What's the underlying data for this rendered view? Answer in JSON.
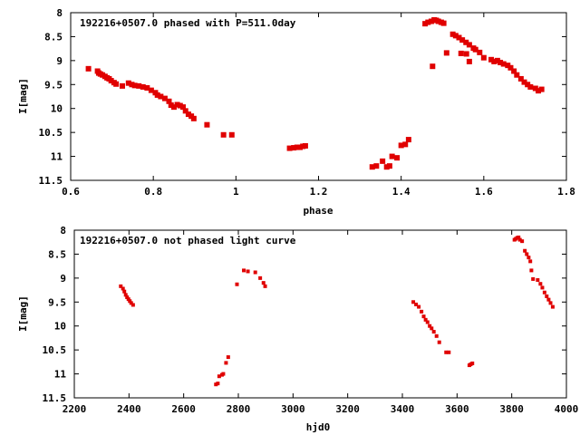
{
  "colors": {
    "points": "#e00000",
    "axis": "#000000",
    "background": "#ffffff"
  },
  "chart_data": [
    {
      "type": "scatter",
      "title": "192216+0507.0 phased with P=511.0day",
      "xlabel": "phase",
      "ylabel": "I[mag]",
      "xlim": [
        0.6,
        1.8
      ],
      "ylim": [
        8,
        11.5
      ],
      "y_inverted": true,
      "x_ticks": [
        "0.6",
        "0.8",
        "1",
        "1.2",
        "1.4",
        "1.6",
        "1.8"
      ],
      "y_ticks": [
        "8",
        "8.5",
        "9",
        "9.5",
        "10",
        "10.5",
        "11",
        "11.5"
      ],
      "series": [
        {
          "points": [
            [
              0.643,
              9.17
            ],
            [
              0.665,
              9.22
            ],
            [
              0.668,
              9.26
            ],
            [
              0.672,
              9.28
            ],
            [
              0.677,
              9.3
            ],
            [
              0.683,
              9.33
            ],
            [
              0.688,
              9.36
            ],
            [
              0.693,
              9.38
            ],
            [
              0.698,
              9.42
            ],
            [
              0.705,
              9.46
            ],
            [
              0.71,
              9.49
            ],
            [
              0.725,
              9.53
            ],
            [
              0.74,
              9.47
            ],
            [
              0.748,
              9.5
            ],
            [
              0.755,
              9.52
            ],
            [
              0.765,
              9.53
            ],
            [
              0.775,
              9.55
            ],
            [
              0.785,
              9.57
            ],
            [
              0.795,
              9.62
            ],
            [
              0.805,
              9.67
            ],
            [
              0.81,
              9.72
            ],
            [
              0.818,
              9.75
            ],
            [
              0.828,
              9.79
            ],
            [
              0.838,
              9.85
            ],
            [
              0.843,
              9.93
            ],
            [
              0.85,
              9.97
            ],
            [
              0.858,
              9.92
            ],
            [
              0.865,
              9.94
            ],
            [
              0.872,
              9.97
            ],
            [
              0.878,
              10.05
            ],
            [
              0.885,
              10.12
            ],
            [
              0.892,
              10.16
            ],
            [
              0.898,
              10.21
            ],
            [
              0.93,
              10.34
            ],
            [
              0.97,
              10.55
            ],
            [
              0.99,
              10.55
            ],
            [
              1.13,
              10.83
            ],
            [
              1.14,
              10.82
            ],
            [
              1.148,
              10.81
            ],
            [
              1.155,
              10.81
            ],
            [
              1.162,
              10.79
            ],
            [
              1.168,
              10.78
            ],
            [
              1.33,
              11.22
            ],
            [
              1.34,
              11.2
            ],
            [
              1.355,
              11.1
            ],
            [
              1.365,
              11.22
            ],
            [
              1.372,
              11.2
            ],
            [
              1.378,
              11.0
            ],
            [
              1.39,
              11.03
            ],
            [
              1.4,
              10.77
            ],
            [
              1.41,
              10.75
            ],
            [
              1.418,
              10.65
            ],
            [
              1.458,
              8.23
            ],
            [
              1.465,
              8.2
            ],
            [
              1.473,
              8.18
            ],
            [
              1.48,
              8.15
            ],
            [
              1.485,
              8.16
            ],
            [
              1.49,
              8.18
            ],
            [
              1.497,
              8.2
            ],
            [
              1.503,
              8.22
            ],
            [
              1.476,
              9.12
            ],
            [
              1.51,
              8.84
            ],
            [
              1.525,
              8.45
            ],
            [
              1.532,
              8.48
            ],
            [
              1.54,
              8.52
            ],
            [
              1.548,
              8.57
            ],
            [
              1.557,
              8.62
            ],
            [
              1.565,
              8.67
            ],
            [
              1.545,
              8.85
            ],
            [
              1.558,
              8.86
            ],
            [
              1.565,
              9.02
            ],
            [
              1.575,
              8.74
            ],
            [
              1.58,
              8.77
            ],
            [
              1.59,
              8.83
            ],
            [
              1.6,
              8.94
            ],
            [
              1.618,
              8.98
            ],
            [
              1.625,
              9.02
            ],
            [
              1.633,
              9.0
            ],
            [
              1.64,
              9.04
            ],
            [
              1.648,
              9.07
            ],
            [
              1.658,
              9.1
            ],
            [
              1.665,
              9.15
            ],
            [
              1.673,
              9.22
            ],
            [
              1.68,
              9.3
            ],
            [
              1.69,
              9.38
            ],
            [
              1.698,
              9.45
            ],
            [
              1.706,
              9.5
            ],
            [
              1.713,
              9.55
            ],
            [
              1.725,
              9.58
            ],
            [
              1.732,
              9.63
            ],
            [
              1.74,
              9.6
            ]
          ]
        }
      ]
    },
    {
      "type": "scatter",
      "title": "192216+0507.0 not phased light curve",
      "xlabel": "hjd0",
      "ylabel": "I[mag]",
      "xlim": [
        2200,
        4000
      ],
      "ylim": [
        8,
        11.5
      ],
      "y_inverted": true,
      "x_ticks": [
        "2200",
        "2400",
        "2600",
        "2800",
        "3000",
        "3200",
        "3400",
        "3600",
        "3800",
        "4000"
      ],
      "y_ticks": [
        "8",
        "8.5",
        "9",
        "9.5",
        "10",
        "10.5",
        "11",
        "11.5"
      ],
      "series": [
        {
          "points": [
            [
              2370,
              9.17
            ],
            [
              2378,
              9.22
            ],
            [
              2383,
              9.28
            ],
            [
              2388,
              9.35
            ],
            [
              2393,
              9.4
            ],
            [
              2398,
              9.44
            ],
            [
              2403,
              9.48
            ],
            [
              2408,
              9.52
            ],
            [
              2415,
              9.56
            ],
            [
              2718,
              11.22
            ],
            [
              2725,
              11.2
            ],
            [
              2730,
              11.05
            ],
            [
              2740,
              11.02
            ],
            [
              2745,
              11.0
            ],
            [
              2755,
              10.77
            ],
            [
              2763,
              10.65
            ],
            [
              2795,
              9.13
            ],
            [
              2820,
              8.84
            ],
            [
              2835,
              8.86
            ],
            [
              2862,
              8.88
            ],
            [
              2880,
              9.0
            ],
            [
              2892,
              9.1
            ],
            [
              2898,
              9.17
            ],
            [
              3440,
              9.5
            ],
            [
              3450,
              9.55
            ],
            [
              3460,
              9.6
            ],
            [
              3470,
              9.7
            ],
            [
              3478,
              9.8
            ],
            [
              3485,
              9.87
            ],
            [
              3492,
              9.92
            ],
            [
              3500,
              10.0
            ],
            [
              3507,
              10.05
            ],
            [
              3515,
              10.12
            ],
            [
              3525,
              10.21
            ],
            [
              3535,
              10.34
            ],
            [
              3560,
              10.55
            ],
            [
              3570,
              10.55
            ],
            [
              3645,
              10.82
            ],
            [
              3650,
              10.8
            ],
            [
              3656,
              10.78
            ],
            [
              3810,
              8.2
            ],
            [
              3815,
              8.18
            ],
            [
              3820,
              8.16
            ],
            [
              3825,
              8.15
            ],
            [
              3830,
              8.2
            ],
            [
              3838,
              8.23
            ],
            [
              3848,
              8.43
            ],
            [
              3855,
              8.5
            ],
            [
              3862,
              8.57
            ],
            [
              3868,
              8.65
            ],
            [
              3872,
              8.84
            ],
            [
              3878,
              9.02
            ],
            [
              3895,
              9.04
            ],
            [
              3905,
              9.12
            ],
            [
              3912,
              9.2
            ],
            [
              3920,
              9.3
            ],
            [
              3928,
              9.38
            ],
            [
              3935,
              9.45
            ],
            [
              3942,
              9.52
            ],
            [
              3950,
              9.6
            ]
          ]
        }
      ]
    }
  ]
}
